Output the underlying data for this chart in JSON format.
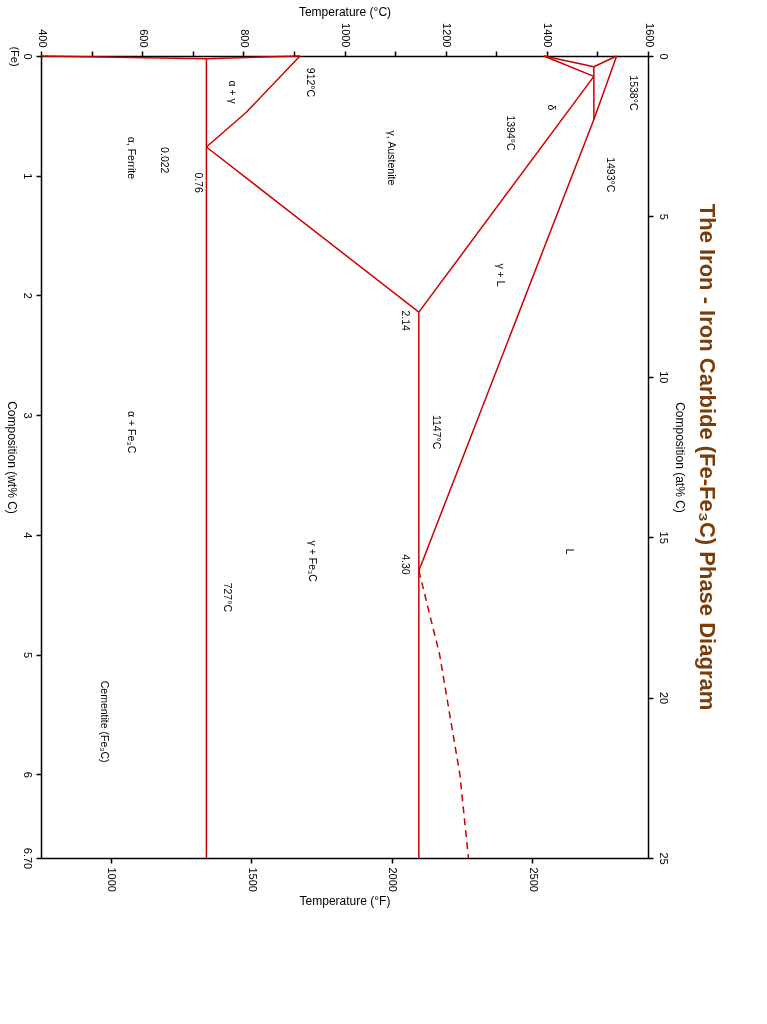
{
  "chart_data": {
    "type": "line",
    "title": "The Iron - Iron Carbide (Fe-Fe₃C) Phase Diagram",
    "xlabel": "Temperature (°F)",
    "x2label": "Temperature (°C)",
    "ylabel": "Composition (wt% C)",
    "y2label": "Composition (at% C)",
    "xlim": [
      752,
      2912
    ],
    "xticks": [
      1000,
      1500,
      2000,
      2500
    ],
    "x2lim": [
      400,
      1600
    ],
    "x2ticks": [
      400,
      {
        "value": 500,
        "label": null
      },
      600,
      {
        "value": 700,
        "label": null
      },
      800,
      {
        "value": 900,
        "label": null
      },
      1000,
      {
        "value": 1100,
        "label": null
      },
      1200,
      {
        "value": 1300,
        "label": null
      },
      1400,
      {
        "value": 1500,
        "label": null
      },
      1600
    ],
    "ylim": [
      6.7,
      0
    ],
    "yticks": [
      {
        "value": 0,
        "label": "0\n(Fe)"
      },
      1,
      2,
      3,
      4,
      5,
      6,
      {
        "value": 6.7,
        "label": "6.70"
      }
    ],
    "y2lim": [
      25,
      0
    ],
    "y2ticks": [
      0,
      5,
      10,
      15,
      20,
      25
    ],
    "grid": false,
    "legend": false,
    "marker": "none",
    "line_style": "solid",
    "series": [
      {
        "axis": "x2",
        "color": "#cc0000",
        "x": [
          1538,
          1493,
          1147
        ],
        "values": [
          0,
          0.53,
          4.3
        ]
      },
      {
        "axis": "x2",
        "color": "#cc0000",
        "line_style": "dashed",
        "x": [
          1147,
          1188,
          1228,
          1245
        ],
        "values": [
          4.3,
          5.0,
          6.0,
          6.7
        ]
      },
      {
        "axis": "x2",
        "color": "#cc0000",
        "x": [
          1538,
          1493
        ],
        "values": [
          0,
          0.09
        ]
      },
      {
        "axis": "x2",
        "color": "#cc0000",
        "x": [
          1394,
          1493
        ],
        "values": [
          0,
          0.09
        ]
      },
      {
        "axis": "x2",
        "color": "#cc0000",
        "x": [
          1394,
          1493
        ],
        "values": [
          0,
          0.17
        ]
      },
      {
        "axis": "x2",
        "color": "#cc0000",
        "x": [
          1493,
          1493
        ],
        "values": [
          0.09,
          0.53
        ]
      },
      {
        "axis": "x2",
        "color": "#cc0000",
        "x": [
          1493,
          1147
        ],
        "values": [
          0.17,
          2.14
        ]
      },
      {
        "axis": "x2",
        "color": "#cc0000",
        "x": [
          1147,
          1147
        ],
        "values": [
          2.14,
          6.7
        ]
      },
      {
        "axis": "x2",
        "color": "#cc0000",
        "x": [
          1147,
          727
        ],
        "values": [
          2.14,
          0.76
        ]
      },
      {
        "axis": "x2",
        "color": "#cc0000",
        "x": [
          912,
          806,
          727
        ],
        "values": [
          0,
          0.47,
          0.76
        ]
      },
      {
        "axis": "x2",
        "color": "#cc0000",
        "x": [
          912,
          727,
          400
        ],
        "values": [
          0,
          0.022,
          0
        ]
      },
      {
        "axis": "x2",
        "color": "#cc0000",
        "x": [
          727,
          727
        ],
        "values": [
          0.022,
          6.7
        ]
      }
    ],
    "annotations": [
      "1538°C",
      "1493°C",
      "1394°C",
      "δ",
      "912°C",
      "α + γ",
      "0.76",
      "0.022",
      "α, Ferrite",
      "γ, Austenite",
      "γ + L",
      "L",
      "2.14",
      "1147°C",
      "4.30",
      "γ + Fe₃C",
      "727°C",
      "α + Fe₃C",
      "Cementite (Fe₃C)"
    ]
  }
}
